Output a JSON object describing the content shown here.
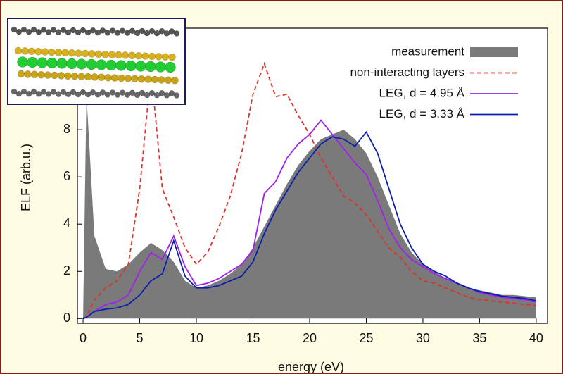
{
  "chart_data": {
    "type": "line",
    "x_label": "energy (eV)",
    "y_label": "ELF (arb.u.)",
    "x": [
      0,
      0.3,
      1,
      2,
      3,
      4,
      5,
      6,
      7,
      8,
      9,
      10,
      11,
      12,
      13,
      14,
      15,
      16,
      17,
      18,
      19,
      20,
      21,
      22,
      23,
      24,
      25,
      26,
      27,
      28,
      29,
      30,
      31,
      32,
      33,
      34,
      35,
      36,
      37,
      38,
      39,
      40
    ],
    "series": [
      {
        "name": "measurement",
        "color": "#7a7a7a",
        "fill": true,
        "values": [
          0,
          9.5,
          3.5,
          2.1,
          2.0,
          2.3,
          2.8,
          3.2,
          2.9,
          2.4,
          1.6,
          1.3,
          1.4,
          1.6,
          1.9,
          2.3,
          3.0,
          3.9,
          4.8,
          5.7,
          6.5,
          7.1,
          7.6,
          7.8,
          8.0,
          7.6,
          7.0,
          6.0,
          4.8,
          3.6,
          2.8,
          2.3,
          2.0,
          1.7,
          1.5,
          1.3,
          1.2,
          1.1,
          1.0,
          1.0,
          0.95,
          0.9
        ]
      },
      {
        "name": "non-interacting layers",
        "color": "#e0302a",
        "dashed": true,
        "values": [
          0,
          0.1,
          0.8,
          1.3,
          1.6,
          2.3,
          5.5,
          10.5,
          5.5,
          4.3,
          3.0,
          2.3,
          2.8,
          3.9,
          5.2,
          7.0,
          9.5,
          10.8,
          9.4,
          9.5,
          8.6,
          7.8,
          6.8,
          6.0,
          5.2,
          4.9,
          4.4,
          3.7,
          3.0,
          2.6,
          2.0,
          1.6,
          1.5,
          1.3,
          1.1,
          0.9,
          0.8,
          0.75,
          0.7,
          0.65,
          0.6,
          0.55
        ]
      },
      {
        "name": "LEG, d = 4.95 Å",
        "color": "#a020f0",
        "values": [
          0,
          0.05,
          0.3,
          0.6,
          0.7,
          1.0,
          2.0,
          2.8,
          2.5,
          3.5,
          2.2,
          1.4,
          1.5,
          1.7,
          2.0,
          2.3,
          2.9,
          5.3,
          5.8,
          6.8,
          7.4,
          7.8,
          8.4,
          7.8,
          7.2,
          6.6,
          6.1,
          5.0,
          3.8,
          3.0,
          2.5,
          2.2,
          1.9,
          1.7,
          1.5,
          1.3,
          1.1,
          1.0,
          0.9,
          0.85,
          0.8,
          0.7
        ]
      },
      {
        "name": "LEG, d = 3.33 Å",
        "color": "#0a1fb0",
        "values": [
          0,
          0.05,
          0.3,
          0.4,
          0.45,
          0.6,
          1.0,
          1.6,
          1.9,
          3.3,
          1.8,
          1.3,
          1.3,
          1.4,
          1.6,
          1.8,
          2.4,
          3.6,
          4.6,
          5.4,
          6.2,
          6.8,
          7.4,
          7.7,
          7.6,
          7.3,
          7.9,
          7.0,
          5.5,
          4.0,
          3.0,
          2.3,
          2.0,
          1.8,
          1.5,
          1.3,
          1.15,
          1.05,
          0.95,
          0.9,
          0.85,
          0.75
        ]
      }
    ],
    "xlim": [
      -0.5,
      41
    ],
    "ylim": [
      -0.2,
      12.3
    ],
    "xticks": [
      0,
      5,
      10,
      15,
      20,
      25,
      30,
      35,
      40
    ],
    "yticks": [
      0,
      2,
      4,
      6,
      8
    ],
    "legend": "top-right"
  }
}
